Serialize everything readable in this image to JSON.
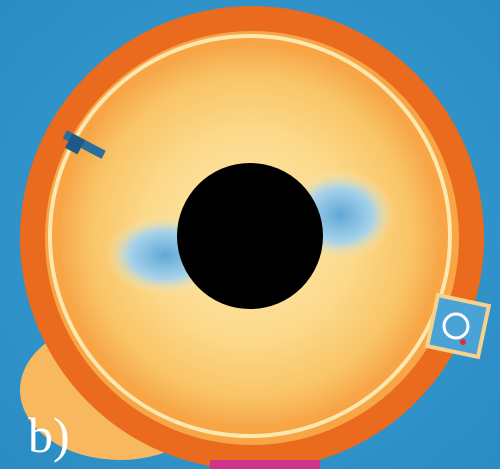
{
  "label": "b)"
}
